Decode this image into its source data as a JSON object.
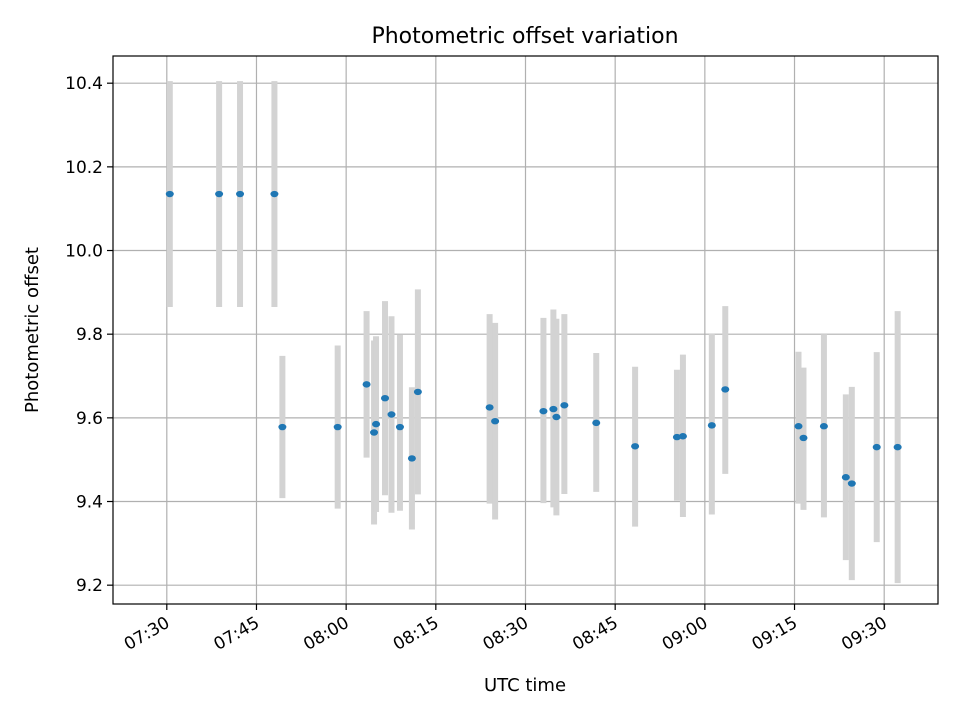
{
  "chart_data": {
    "type": "scatter",
    "title": "Photometric offset variation",
    "xlabel": "UTC time",
    "ylabel": "Photometric offset",
    "xlim": [
      "07:21",
      "09:39"
    ],
    "ylim": [
      9.155,
      10.465
    ],
    "x_ticks": [
      "07:30",
      "07:45",
      "08:00",
      "08:15",
      "08:30",
      "08:45",
      "09:00",
      "09:15",
      "09:30"
    ],
    "y_ticks": [
      "9.2",
      "9.4",
      "9.6",
      "9.8",
      "10.0",
      "10.2",
      "10.4"
    ],
    "grid": true,
    "colors": {
      "point": "#1f77b4",
      "error_bar": "#d3d3d3",
      "grid": "#b0b0b0"
    },
    "series": [
      {
        "points": [
          {
            "t": "07:30:30",
            "y": 10.135,
            "lo": 9.865,
            "hi": 10.405
          },
          {
            "t": "07:38:45",
            "y": 10.135,
            "lo": 9.865,
            "hi": 10.405
          },
          {
            "t": "07:42:15",
            "y": 10.135,
            "lo": 9.865,
            "hi": 10.405
          },
          {
            "t": "07:48:00",
            "y": 10.135,
            "lo": 9.865,
            "hi": 10.405
          },
          {
            "t": "07:49:20",
            "y": 9.578,
            "lo": 9.408,
            "hi": 9.748
          },
          {
            "t": "07:58:35",
            "y": 9.578,
            "lo": 9.383,
            "hi": 9.773
          },
          {
            "t": "08:03:25",
            "y": 9.68,
            "lo": 9.505,
            "hi": 9.855
          },
          {
            "t": "08:04:40",
            "y": 9.565,
            "lo": 9.345,
            "hi": 9.785
          },
          {
            "t": "08:05:00",
            "y": 9.585,
            "lo": 9.375,
            "hi": 9.795
          },
          {
            "t": "08:06:30",
            "y": 9.647,
            "lo": 9.415,
            "hi": 9.879
          },
          {
            "t": "08:07:35",
            "y": 9.608,
            "lo": 9.373,
            "hi": 9.843
          },
          {
            "t": "08:09:00",
            "y": 9.578,
            "lo": 9.378,
            "hi": 9.798
          },
          {
            "t": "08:11:00",
            "y": 9.503,
            "lo": 9.333,
            "hi": 9.673
          },
          {
            "t": "08:12:00",
            "y": 9.662,
            "lo": 9.417,
            "hi": 9.907
          },
          {
            "t": "08:24:00",
            "y": 9.625,
            "lo": 9.395,
            "hi": 9.848
          },
          {
            "t": "08:24:55",
            "y": 9.592,
            "lo": 9.357,
            "hi": 9.827
          },
          {
            "t": "08:33:00",
            "y": 9.616,
            "lo": 9.396,
            "hi": 9.839
          },
          {
            "t": "08:34:40",
            "y": 9.621,
            "lo": 9.386,
            "hi": 9.859
          },
          {
            "t": "08:35:10",
            "y": 9.602,
            "lo": 9.367,
            "hi": 9.837
          },
          {
            "t": "08:36:30",
            "y": 9.63,
            "lo": 9.418,
            "hi": 9.848
          },
          {
            "t": "08:41:50",
            "y": 9.588,
            "lo": 9.423,
            "hi": 9.755
          },
          {
            "t": "08:48:20",
            "y": 9.532,
            "lo": 9.34,
            "hi": 9.722
          },
          {
            "t": "08:55:20",
            "y": 9.554,
            "lo": 9.402,
            "hi": 9.715
          },
          {
            "t": "08:56:20",
            "y": 9.556,
            "lo": 9.363,
            "hi": 9.751
          },
          {
            "t": "09:01:10",
            "y": 9.582,
            "lo": 9.369,
            "hi": 9.802
          },
          {
            "t": "09:03:25",
            "y": 9.668,
            "lo": 9.466,
            "hi": 9.867
          },
          {
            "t": "09:15:40",
            "y": 9.58,
            "lo": 9.395,
            "hi": 9.758
          },
          {
            "t": "09:16:30",
            "y": 9.552,
            "lo": 9.38,
            "hi": 9.72
          },
          {
            "t": "09:19:55",
            "y": 9.58,
            "lo": 9.362,
            "hi": 9.8
          },
          {
            "t": "09:23:35",
            "y": 9.458,
            "lo": 9.26,
            "hi": 9.656
          },
          {
            "t": "09:24:35",
            "y": 9.443,
            "lo": 9.212,
            "hi": 9.674
          },
          {
            "t": "09:28:45",
            "y": 9.53,
            "lo": 9.303,
            "hi": 9.757
          },
          {
            "t": "09:32:15",
            "y": 9.53,
            "lo": 9.205,
            "hi": 9.855
          }
        ]
      }
    ]
  }
}
